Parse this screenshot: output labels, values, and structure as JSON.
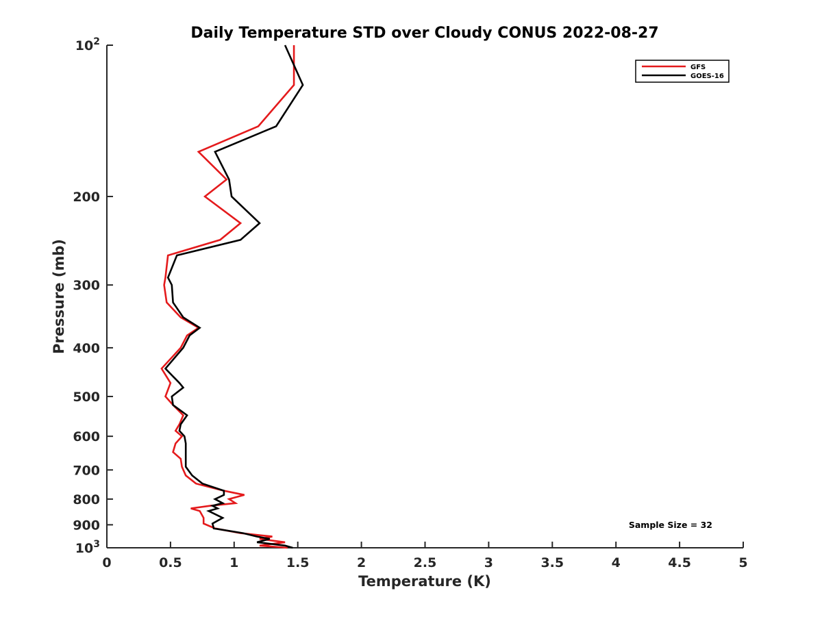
{
  "chart_data": {
    "type": "line",
    "title": "Daily Temperature STD over Cloudy CONUS 2022-08-27",
    "xlabel": "Temperature (K)",
    "ylabel": "Pressure (mb)",
    "xlim": [
      0,
      5
    ],
    "ylim": [
      100,
      1000
    ],
    "y_scale": "log",
    "y_reversed": true,
    "xticks": [
      0,
      0.5,
      1,
      1.5,
      2,
      2.5,
      3,
      3.5,
      4,
      4.5,
      5
    ],
    "xtick_labels": [
      "0",
      "0.5",
      "1",
      "1.5",
      "2",
      "2.5",
      "3",
      "3.5",
      "4",
      "4.5",
      "5"
    ],
    "yticks": [
      {
        "value": 100,
        "label": "10",
        "sup": "2"
      },
      {
        "value": 200,
        "label": "200",
        "sup": ""
      },
      {
        "value": 300,
        "label": "300",
        "sup": ""
      },
      {
        "value": 400,
        "label": "400",
        "sup": ""
      },
      {
        "value": 500,
        "label": "500",
        "sup": ""
      },
      {
        "value": 600,
        "label": "600",
        "sup": ""
      },
      {
        "value": 700,
        "label": "700",
        "sup": ""
      },
      {
        "value": 800,
        "label": "800",
        "sup": ""
      },
      {
        "value": 900,
        "label": "900",
        "sup": ""
      },
      {
        "value": 1000,
        "label": "10",
        "sup": "3"
      }
    ],
    "grid": false,
    "legend_position": "top-right",
    "series": [
      {
        "name": "GFS",
        "color": "#e41a1c",
        "points": [
          [
            1.47,
            100
          ],
          [
            1.47,
            120
          ],
          [
            1.19,
            145
          ],
          [
            0.72,
            163
          ],
          [
            0.94,
            185
          ],
          [
            0.77,
            200
          ],
          [
            1.05,
            226
          ],
          [
            0.89,
            244
          ],
          [
            0.48,
            262
          ],
          [
            0.46,
            290
          ],
          [
            0.45,
            300
          ],
          [
            0.47,
            325
          ],
          [
            0.58,
            348
          ],
          [
            0.72,
            365
          ],
          [
            0.63,
            378
          ],
          [
            0.58,
            400
          ],
          [
            0.43,
            440
          ],
          [
            0.5,
            470
          ],
          [
            0.46,
            500
          ],
          [
            0.52,
            520
          ],
          [
            0.6,
            545
          ],
          [
            0.57,
            568
          ],
          [
            0.54,
            585
          ],
          [
            0.59,
            600
          ],
          [
            0.54,
            620
          ],
          [
            0.52,
            645
          ],
          [
            0.58,
            665
          ],
          [
            0.59,
            690
          ],
          [
            0.62,
            718
          ],
          [
            0.7,
            745
          ],
          [
            0.92,
            770
          ],
          [
            1.08,
            785
          ],
          [
            0.96,
            800
          ],
          [
            1.01,
            815
          ],
          [
            0.81,
            825
          ],
          [
            0.66,
            835
          ],
          [
            0.73,
            845
          ],
          [
            0.76,
            872
          ],
          [
            0.76,
            895
          ],
          [
            0.85,
            915
          ],
          [
            1.05,
            935
          ],
          [
            1.3,
            950
          ],
          [
            1.2,
            960
          ],
          [
            1.4,
            975
          ],
          [
            1.2,
            990
          ],
          [
            1.42,
            1000
          ]
        ]
      },
      {
        "name": "GOES-16",
        "color": "#000000",
        "points": [
          [
            1.4,
            100
          ],
          [
            1.54,
            120
          ],
          [
            1.33,
            145
          ],
          [
            0.85,
            163
          ],
          [
            0.96,
            185
          ],
          [
            0.98,
            200
          ],
          [
            1.2,
            226
          ],
          [
            1.05,
            244
          ],
          [
            0.55,
            262
          ],
          [
            0.48,
            290
          ],
          [
            0.51,
            300
          ],
          [
            0.52,
            325
          ],
          [
            0.6,
            348
          ],
          [
            0.73,
            365
          ],
          [
            0.65,
            378
          ],
          [
            0.6,
            400
          ],
          [
            0.46,
            440
          ],
          [
            0.57,
            470
          ],
          [
            0.6,
            480
          ],
          [
            0.51,
            500
          ],
          [
            0.52,
            520
          ],
          [
            0.63,
            545
          ],
          [
            0.58,
            568
          ],
          [
            0.57,
            585
          ],
          [
            0.61,
            600
          ],
          [
            0.62,
            620
          ],
          [
            0.62,
            645
          ],
          [
            0.62,
            665
          ],
          [
            0.62,
            690
          ],
          [
            0.67,
            718
          ],
          [
            0.75,
            745
          ],
          [
            0.92,
            770
          ],
          [
            0.92,
            785
          ],
          [
            0.85,
            800
          ],
          [
            0.91,
            815
          ],
          [
            0.83,
            825
          ],
          [
            0.87,
            835
          ],
          [
            0.8,
            845
          ],
          [
            0.91,
            872
          ],
          [
            0.83,
            895
          ],
          [
            0.84,
            915
          ],
          [
            1.07,
            935
          ],
          [
            1.18,
            950
          ],
          [
            1.28,
            960
          ],
          [
            1.18,
            975
          ],
          [
            1.4,
            990
          ],
          [
            1.46,
            1000
          ]
        ]
      }
    ],
    "annotations": [
      {
        "text": "Sample Size = 32",
        "position": "bottom-right"
      }
    ]
  }
}
